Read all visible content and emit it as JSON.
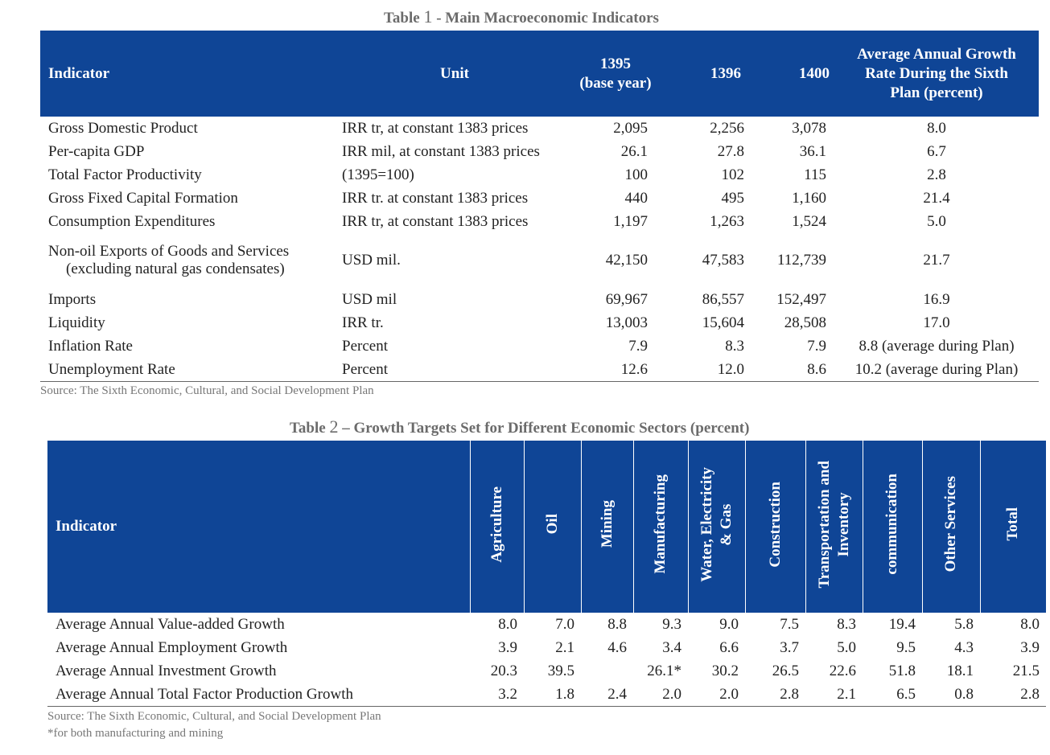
{
  "table1": {
    "caption_prefix": "Table",
    "caption_num": "1",
    "caption_text": "- Main Macroeconomic Indicators",
    "headers": {
      "indicator": "Indicator",
      "unit": "Unit",
      "y1395": "1395",
      "y1395_note": "(base year)",
      "y1396": "1396",
      "y1400": "1400",
      "growth_l1": "Average Annual Growth",
      "growth_l2": "Rate During  the Sixth",
      "growth_l3": "Plan (percent)"
    },
    "rows": [
      {
        "indicator": "Gross Domestic Product",
        "unit": "IRR tr, at constant 1383 prices",
        "y1395": "2,095",
        "y1396": "2,256",
        "y1400": "3,078",
        "growth": "8.0"
      },
      {
        "indicator": "Per-capita GDP",
        "unit": "IRR mil, at constant 1383 prices",
        "y1395": "26.1",
        "y1396": "27.8",
        "y1400": "36.1",
        "growth": "6.7"
      },
      {
        "indicator": "Total Factor Productivity",
        "unit": "(1395=100)",
        "y1395": "100",
        "y1396": "102",
        "y1400": "115",
        "growth": "2.8"
      },
      {
        "indicator": "Gross Fixed Capital Formation",
        "unit": "IRR tr. at constant 1383 prices",
        "y1395": "440",
        "y1396": "495",
        "y1400": "1,160",
        "growth": "21.4"
      },
      {
        "indicator": "Consumption Expenditures",
        "unit": "IRR tr, at constant 1383 prices",
        "y1395": "1,197",
        "y1396": "1,263",
        "y1400": "1,524",
        "growth": "5.0"
      },
      {
        "indicator": "Non-oil Exports of Goods and Services",
        "indicator_l2": "(excluding natural gas condensates)",
        "unit": "USD mil.",
        "y1395": "42,150",
        "y1396": "47,583",
        "y1400": "112,739",
        "growth": "21.7"
      },
      {
        "indicator": "Imports",
        "unit": "USD mil",
        "y1395": "69,967",
        "y1396": "86,557",
        "y1400": "152,497",
        "growth": "16.9"
      },
      {
        "indicator": "Liquidity",
        "unit": "IRR tr.",
        "y1395": "13,003",
        "y1396": "15,604",
        "y1400": "28,508",
        "growth": "17.0"
      },
      {
        "indicator": "Inflation Rate",
        "unit": "Percent",
        "y1395": "7.9",
        "y1396": "8.3",
        "y1400": "7.9",
        "growth": "8.8 (average during Plan)"
      },
      {
        "indicator": "Unemployment Rate",
        "unit": "Percent",
        "y1395": "12.6",
        "y1396": "12.0",
        "y1400": "8.6",
        "growth": "10.2 (average during Plan)"
      }
    ],
    "source": "Source: The Sixth Economic, Cultural, and Social Development Plan"
  },
  "table2": {
    "caption_prefix": "Table",
    "caption_num": "2",
    "caption_text": "– Growth Targets Set for Different Economic Sectors (percent)",
    "headers": {
      "indicator": "Indicator",
      "agriculture": "Agriculture",
      "oil": "Oil",
      "mining": "Mining",
      "manufacturing": "Manufacturing",
      "water_l1": "Water, Electricity",
      "water_l2": "& Gas",
      "construction": "Construction",
      "transport_l1": "Transportation and",
      "transport_l2": "Inventory",
      "communication": "communication",
      "other": "Other Services",
      "total": "Total"
    },
    "rows": [
      {
        "indicator": "Average Annual Value-added Growth",
        "vals": [
          "8.0",
          "7.0",
          "8.8",
          "9.3",
          "9.0",
          "7.5",
          "8.3",
          "19.4",
          "5.8",
          "8.0"
        ]
      },
      {
        "indicator": "Average Annual Employment Growth",
        "vals": [
          "3.9",
          "2.1",
          "4.6",
          "3.4",
          "6.6",
          "3.7",
          "5.0",
          "9.5",
          "4.3",
          "3.9"
        ]
      },
      {
        "indicator": "Average Annual Investment  Growth",
        "vals": [
          "20.3",
          "39.5",
          "",
          "26.1*",
          "30.2",
          "26.5",
          "22.6",
          "51.8",
          "18.1",
          "21.5"
        ]
      },
      {
        "indicator": "Average Annual Total Factor Production Growth",
        "vals": [
          "3.2",
          "1.8",
          "2.4",
          "2.0",
          "2.0",
          "2.8",
          "2.1",
          "6.5",
          "0.8",
          "2.8"
        ]
      }
    ],
    "source": "Source: The Sixth Economic, Cultural, and Social Development Plan",
    "footnote": "*for both manufacturing and mining"
  }
}
